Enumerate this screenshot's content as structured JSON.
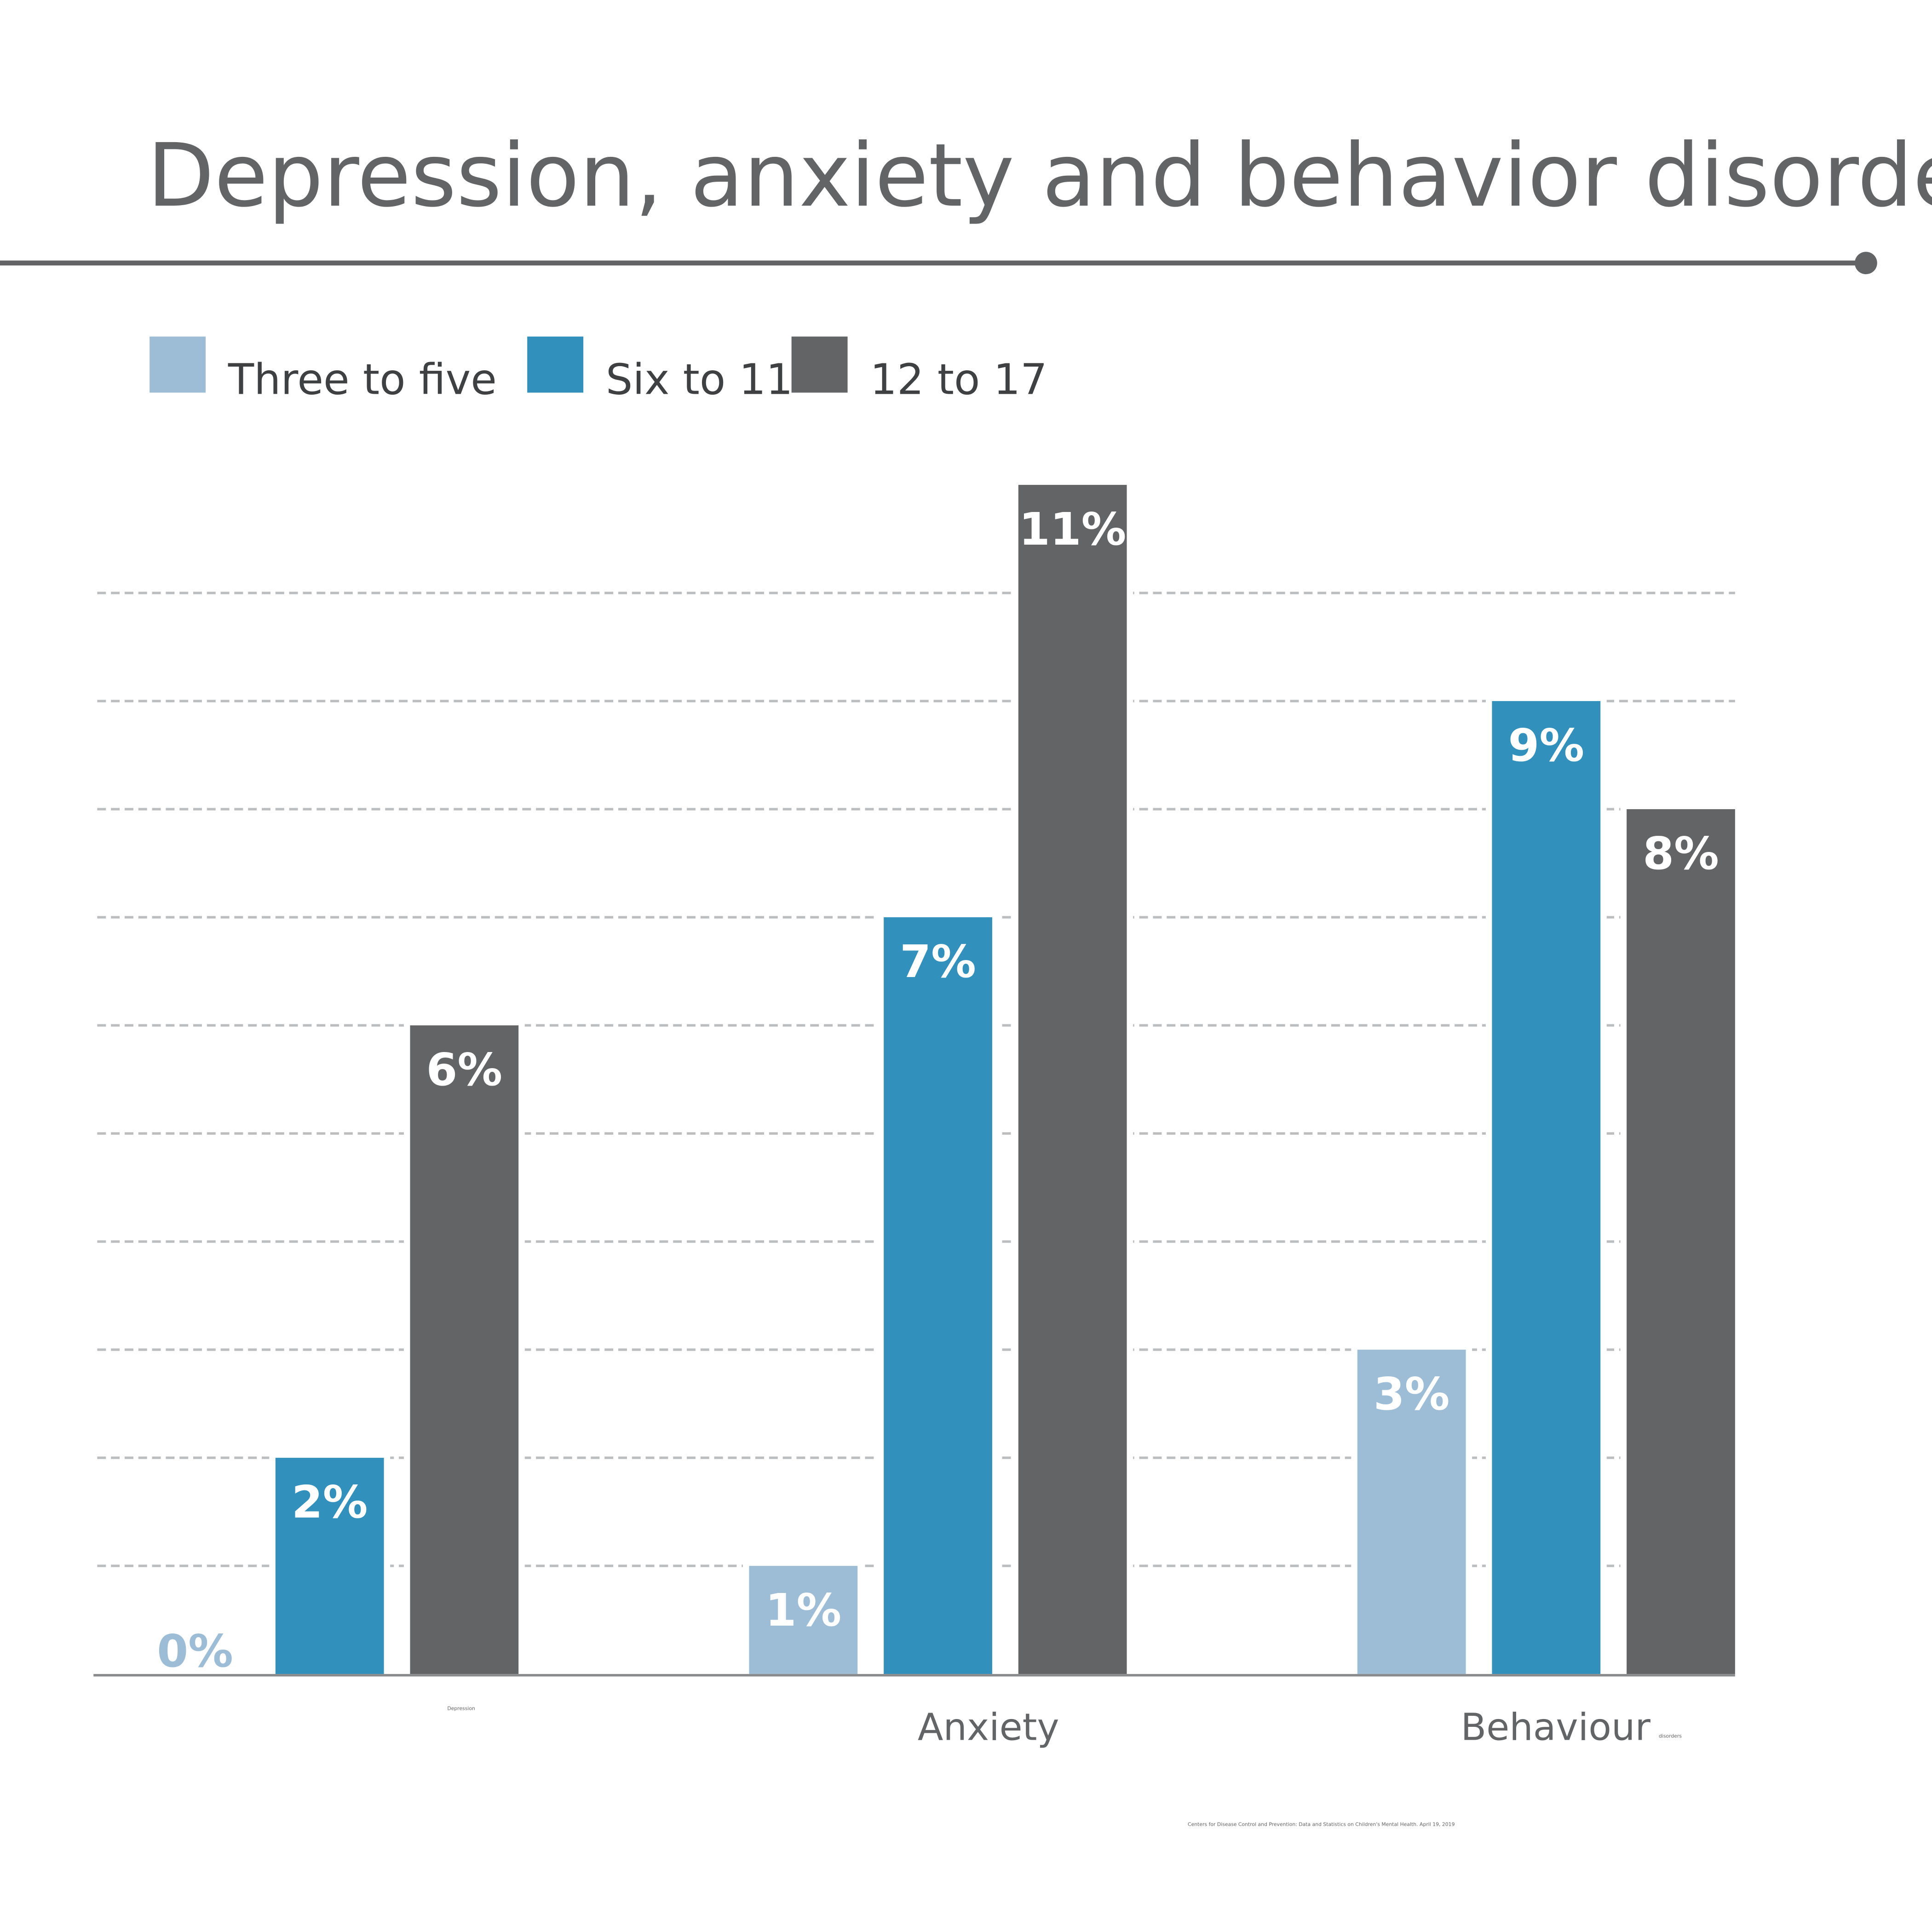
{
  "chart_data": {
    "type": "bar",
    "title": "Depression, anxiety and behavior disorders",
    "categories": [
      "Depression",
      "Anxiety",
      "Behaviour"
    ],
    "category_note": "disorders",
    "source": "Centers for Disease Control and Prevention: Data and Statistics on Children's Mental Health. April 19, 2019",
    "series": [
      {
        "name": "Three to five",
        "color": "#9dbdd6",
        "values": [
          0,
          1,
          3
        ],
        "value_labels": [
          "0%",
          "1%",
          "3%"
        ]
      },
      {
        "name": "Six to 11",
        "color": "#3190bc",
        "values": [
          2,
          7,
          9
        ],
        "value_labels": [
          "2%",
          "7%",
          "9%"
        ]
      },
      {
        "name": "12 to 17",
        "color": "#636466",
        "values": [
          6,
          11,
          8
        ],
        "value_labels": [
          "6%",
          "11%",
          "8%"
        ]
      }
    ],
    "ylim": [
      0,
      11
    ],
    "yticks": [
      1,
      2,
      3,
      4,
      5,
      6,
      7,
      8,
      9,
      10
    ],
    "grid": true,
    "legend": "top"
  }
}
